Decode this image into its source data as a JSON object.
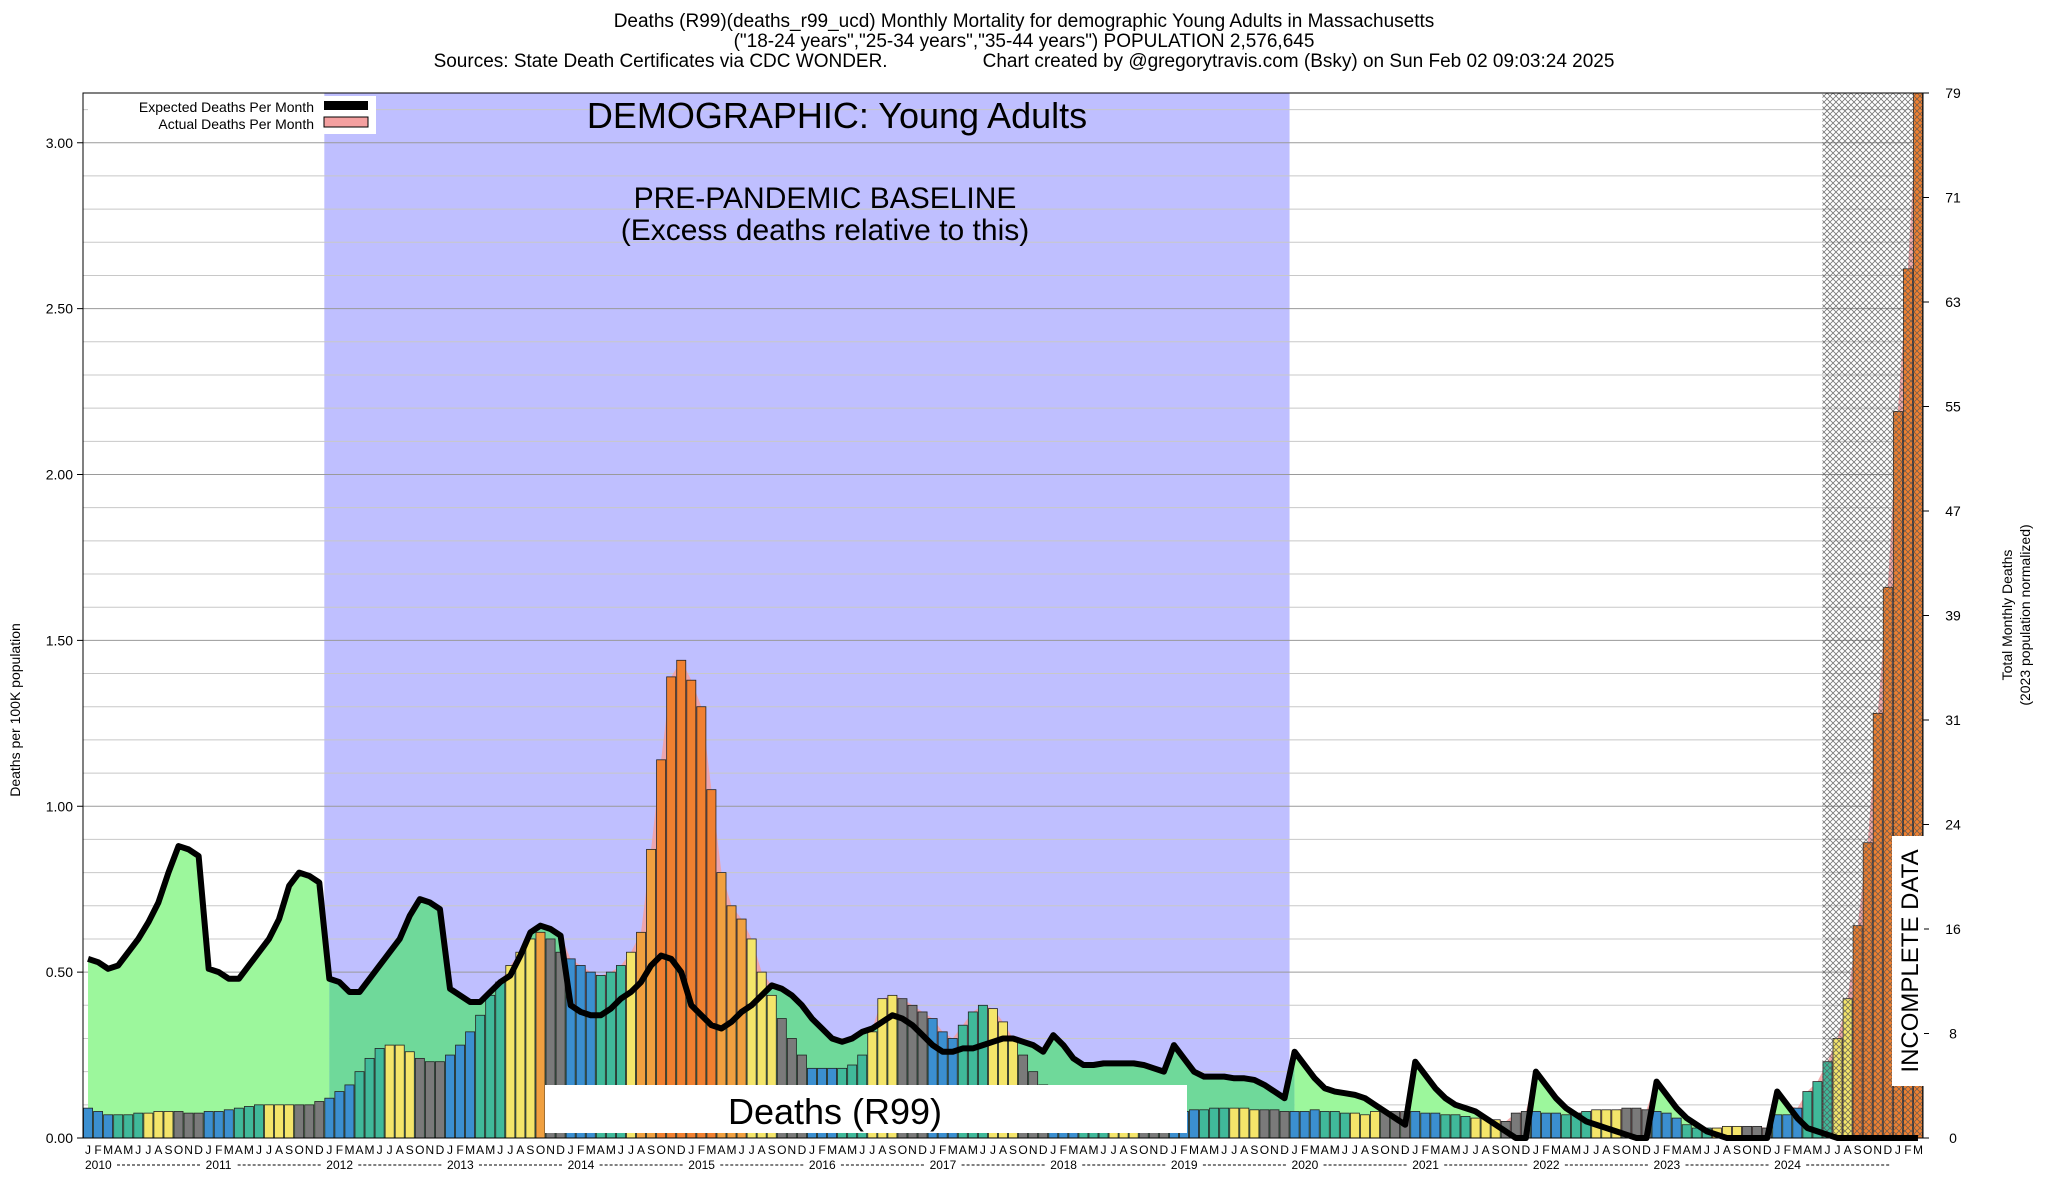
{
  "header": {
    "line1": "Deaths (R99)(deaths_r99_ucd) Monthly Mortality for demographic Young Adults in Massachusetts",
    "line2": "(\"18-24 years\",\"25-34 years\",\"35-44 years\") POPULATION 2,576,645",
    "line3_left": "Sources: State Death Certificates via CDC WONDER.",
    "line3_right": "Chart created by @gregorytravis.com (Bsky) on Sun Feb 02 09:03:24 2025"
  },
  "annotations": {
    "demographic": "DEMOGRAPHIC: Young Adults",
    "baseline_line1": "PRE-PANDEMIC BASELINE",
    "baseline_line2": "(Excess deaths relative to this)",
    "cause_box": "Deaths (R99)",
    "incomplete": "INCOMPLETE DATA"
  },
  "legend": {
    "expected": "Expected Deaths Per Month",
    "actual": "Actual Deaths Per Month"
  },
  "colors": {
    "baseline_band": "#bfbfff",
    "expected_fill_light": "#9cf79c",
    "expected_fill_dark": "#6fd99a",
    "expected_line": "#000000",
    "actual_fill": "#f4a0a0",
    "bar_palette": [
      "#3b8fd0",
      "#40b99a",
      "#f4e56a",
      "#f0a040",
      "#f08030",
      "#7a7a7a"
    ]
  },
  "chart_data": {
    "type": "bar",
    "ylabel_left": "Deaths per 100K population",
    "ylabel_right_line1": "Total Monthly Deaths",
    "ylabel_right_line2": "(2023 population normalized)",
    "ylim": [
      0,
      3.15
    ],
    "y_ticks_left": [
      "0.00",
      "0.50",
      "1.00",
      "1.50",
      "2.00",
      "2.50",
      "3.00"
    ],
    "y_ticks_right": [
      "0",
      "8",
      "16",
      "24",
      "31",
      "39",
      "47",
      "55",
      "63",
      "71",
      "79"
    ],
    "grid": true,
    "legend_position": "top-left",
    "years": [
      "2010",
      "2011",
      "2012",
      "2013",
      "2014",
      "2015",
      "2016",
      "2017",
      "2018",
      "2019",
      "2020",
      "2021",
      "2022",
      "2023",
      "2024"
    ],
    "month_letters": [
      "J",
      "F",
      "M",
      "A",
      "M",
      "J",
      "J",
      "A",
      "S",
      "O",
      "N",
      "D"
    ],
    "baseline_period": [
      "2012-01",
      "2019-12"
    ],
    "incomplete_period": [
      "2024-06",
      "2024-12"
    ],
    "series": [
      {
        "name": "Actual Deaths Per Month",
        "values": [
          0.09,
          0.08,
          0.07,
          0.07,
          0.07,
          0.075,
          0.075,
          0.08,
          0.08,
          0.08,
          0.075,
          0.075,
          0.08,
          0.08,
          0.085,
          0.09,
          0.095,
          0.1,
          0.1,
          0.1,
          0.1,
          0.1,
          0.1,
          0.11,
          0.12,
          0.14,
          0.16,
          0.2,
          0.24,
          0.27,
          0.28,
          0.28,
          0.26,
          0.24,
          0.23,
          0.23,
          0.25,
          0.28,
          0.32,
          0.37,
          0.43,
          0.47,
          0.52,
          0.56,
          0.6,
          0.62,
          0.6,
          0.56,
          0.54,
          0.52,
          0.5,
          0.49,
          0.5,
          0.52,
          0.56,
          0.62,
          0.87,
          1.14,
          1.39,
          1.44,
          1.38,
          1.3,
          1.05,
          0.8,
          0.7,
          0.66,
          0.6,
          0.5,
          0.43,
          0.36,
          0.3,
          0.25,
          0.21,
          0.21,
          0.21,
          0.21,
          0.22,
          0.25,
          0.32,
          0.42,
          0.43,
          0.42,
          0.4,
          0.38,
          0.36,
          0.32,
          0.3,
          0.34,
          0.38,
          0.4,
          0.39,
          0.35,
          0.3,
          0.25,
          0.2,
          0.16,
          0.14,
          0.12,
          0.11,
          0.1,
          0.1,
          0.09,
          0.09,
          0.085,
          0.085,
          0.085,
          0.085,
          0.08,
          0.08,
          0.08,
          0.085,
          0.085,
          0.09,
          0.09,
          0.09,
          0.09,
          0.085,
          0.085,
          0.085,
          0.08,
          0.08,
          0.08,
          0.085,
          0.08,
          0.08,
          0.075,
          0.075,
          0.07,
          0.08,
          0.08,
          0.08,
          0.08,
          0.08,
          0.075,
          0.075,
          0.07,
          0.07,
          0.065,
          0.06,
          0.06,
          0.055,
          0.05,
          0.075,
          0.08,
          0.08,
          0.075,
          0.075,
          0.07,
          0.075,
          0.08,
          0.085,
          0.085,
          0.085,
          0.09,
          0.09,
          0.085,
          0.08,
          0.075,
          0.06,
          0.04,
          0.03,
          0.03,
          0.03,
          0.035,
          0.035,
          0.035,
          0.035,
          0.03,
          0.07,
          0.07,
          0.09,
          0.14,
          0.17,
          0.23,
          0.3,
          0.42,
          0.64,
          0.89,
          1.28,
          1.66,
          2.19,
          2.62,
          3.15
        ]
      },
      {
        "name": "Expected Deaths Per Month",
        "values": [
          0.54,
          0.53,
          0.51,
          0.52,
          0.56,
          0.6,
          0.65,
          0.71,
          0.8,
          0.88,
          0.87,
          0.85,
          0.51,
          0.5,
          0.48,
          0.48,
          0.52,
          0.56,
          0.6,
          0.66,
          0.76,
          0.8,
          0.79,
          0.77,
          0.48,
          0.47,
          0.44,
          0.44,
          0.48,
          0.52,
          0.56,
          0.6,
          0.67,
          0.72,
          0.71,
          0.69,
          0.45,
          0.43,
          0.41,
          0.41,
          0.44,
          0.47,
          0.49,
          0.55,
          0.62,
          0.64,
          0.63,
          0.61,
          0.4,
          0.38,
          0.37,
          0.37,
          0.39,
          0.42,
          0.44,
          0.47,
          0.52,
          0.55,
          0.54,
          0.5,
          0.4,
          0.37,
          0.34,
          0.33,
          0.35,
          0.38,
          0.4,
          0.43,
          0.46,
          0.45,
          0.43,
          0.4,
          0.36,
          0.33,
          0.3,
          0.29,
          0.3,
          0.32,
          0.33,
          0.35,
          0.37,
          0.36,
          0.34,
          0.31,
          0.28,
          0.26,
          0.26,
          0.27,
          0.27,
          0.28,
          0.29,
          0.3,
          0.3,
          0.29,
          0.28,
          0.26,
          0.31,
          0.28,
          0.24,
          0.22,
          0.22,
          0.225,
          0.225,
          0.225,
          0.225,
          0.22,
          0.21,
          0.2,
          0.28,
          0.24,
          0.2,
          0.185,
          0.185,
          0.185,
          0.18,
          0.18,
          0.175,
          0.16,
          0.14,
          0.12,
          0.26,
          0.22,
          0.18,
          0.15,
          0.14,
          0.135,
          0.13,
          0.12,
          0.1,
          0.08,
          0.06,
          0.04,
          0.23,
          0.19,
          0.15,
          0.12,
          0.1,
          0.09,
          0.08,
          0.06,
          0.04,
          0.02,
          0.0,
          0.0,
          0.2,
          0.16,
          0.12,
          0.09,
          0.07,
          0.05,
          0.04,
          0.03,
          0.02,
          0.01,
          0.0,
          0.0,
          0.17,
          0.13,
          0.09,
          0.06,
          0.04,
          0.02,
          0.01,
          0.0,
          0.0,
          0.0,
          0.0,
          0.0,
          0.14,
          0.1,
          0.06,
          0.03,
          0.02,
          0.01,
          0.0,
          0.0,
          0.0,
          0.0,
          0.0,
          0.0,
          0.0,
          0.0,
          0.0
        ]
      }
    ]
  }
}
